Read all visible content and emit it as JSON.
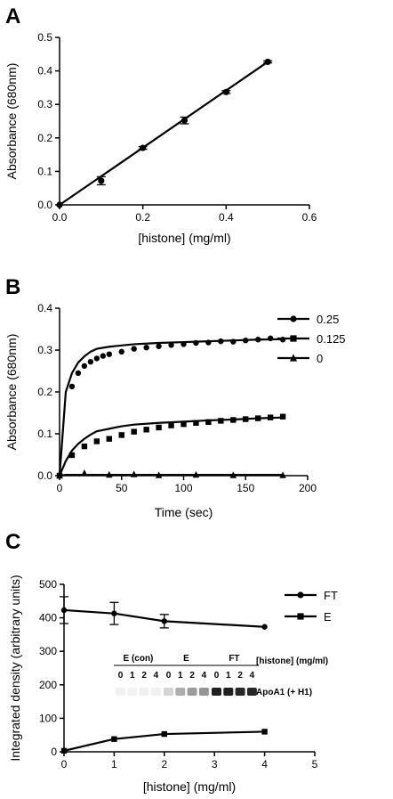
{
  "chart_data": [
    {
      "panel": "A",
      "type": "scatter",
      "xlabel": "[histone] (mg/ml)",
      "ylabel": "Absorbance (680nm)",
      "xlim": [
        0.0,
        0.6
      ],
      "ylim": [
        0.0,
        0.5
      ],
      "xticks": [
        "0.0",
        "0.2",
        "0.4",
        "0.6"
      ],
      "yticks": [
        "0.0",
        "0.1",
        "0.2",
        "0.3",
        "0.4",
        "0.5"
      ],
      "fit_line": {
        "x": [
          0.0,
          0.5
        ],
        "y": [
          0.0,
          0.427
        ]
      },
      "series": [
        {
          "marker": "circle",
          "x": [
            0.0,
            0.1,
            0.2,
            0.3,
            0.4,
            0.5
          ],
          "y": [
            0.0,
            0.072,
            0.17,
            0.252,
            0.337,
            0.427
          ],
          "err": [
            0,
            0.012,
            0.004,
            0.01,
            0.004,
            0.003
          ]
        }
      ]
    },
    {
      "panel": "B",
      "type": "line",
      "xlabel": "Time (sec)",
      "ylabel": "Absorbance (680nm)",
      "xlim": [
        0,
        200
      ],
      "ylim": [
        0.0,
        0.4
      ],
      "xticks": [
        "0",
        "50",
        "100",
        "150",
        "200"
      ],
      "yticks": [
        "0.0",
        "0.1",
        "0.2",
        "0.3",
        "0.4"
      ],
      "legend_position": "right",
      "series": [
        {
          "name": "0.25",
          "marker": "circle",
          "x": [
            10,
            15,
            20,
            25,
            30,
            35,
            40,
            50,
            60,
            70,
            80,
            90,
            100,
            110,
            120,
            130,
            140,
            150,
            160,
            170,
            180
          ],
          "y": [
            0.213,
            0.245,
            0.262,
            0.272,
            0.28,
            0.286,
            0.29,
            0.296,
            0.303,
            0.306,
            0.309,
            0.312,
            0.314,
            0.317,
            0.318,
            0.321,
            0.32,
            0.323,
            0.325,
            0.328,
            0.325
          ],
          "fit_y": [
            0.0,
            0.2,
            0.245,
            0.27,
            0.285,
            0.296,
            0.303,
            0.308,
            0.311,
            0.314,
            0.317,
            0.319,
            0.321,
            0.323,
            0.325,
            0.326
          ]
        },
        {
          "name": "0.125",
          "marker": "square",
          "x": [
            0,
            10,
            20,
            30,
            40,
            50,
            60,
            70,
            80,
            90,
            100,
            110,
            120,
            130,
            140,
            150,
            160,
            170,
            180
          ],
          "y": [
            0.0,
            0.049,
            0.07,
            0.082,
            0.088,
            0.097,
            0.105,
            0.11,
            0.115,
            0.12,
            0.123,
            0.126,
            0.128,
            0.131,
            0.133,
            0.135,
            0.137,
            0.139,
            0.141
          ],
          "fit_y": [
            0.0,
            0.035,
            0.06,
            0.076,
            0.088,
            0.098,
            0.106,
            0.112,
            0.118,
            0.122,
            0.126,
            0.129,
            0.132,
            0.134,
            0.137,
            0.139
          ]
        },
        {
          "name": "0",
          "marker": "triangle",
          "x": [
            0,
            20,
            40,
            60,
            80,
            110,
            140,
            180
          ],
          "y": [
            0.0,
            0.006,
            0.002,
            0.003,
            0.001,
            0.002,
            0.001,
            0.001
          ],
          "fit_y": [
            0.0,
            0.002,
            0.002,
            0.002,
            0.002,
            0.002,
            0.002,
            0.002,
            0.002,
            0.002,
            0.002,
            0.002,
            0.002,
            0.002,
            0.002,
            0.002
          ]
        }
      ],
      "fit_x": [
        0,
        5,
        10,
        15,
        20,
        25,
        30,
        40,
        50,
        60,
        80,
        100,
        120,
        140,
        160,
        180
      ]
    },
    {
      "panel": "C",
      "type": "line",
      "xlabel": "[histone] (mg/ml)",
      "ylabel": "Integrated density (arbitrary units)",
      "xlim": [
        0,
        5
      ],
      "ylim": [
        0,
        500
      ],
      "xticks": [
        "0",
        "1",
        "2",
        "3",
        "4",
        "5"
      ],
      "yticks": [
        "0",
        "100",
        "200",
        "300",
        "400",
        "500"
      ],
      "legend_position": "right",
      "series": [
        {
          "name": "FT",
          "marker": "circle",
          "x": [
            0,
            1,
            2,
            4
          ],
          "y": [
            423,
            413,
            390,
            373
          ],
          "err": [
            40,
            33,
            20,
            0
          ]
        },
        {
          "name": "E",
          "marker": "square",
          "x": [
            0,
            1,
            2,
            4
          ],
          "y": [
            3,
            38,
            53,
            60
          ],
          "err": [
            0,
            0,
            0,
            0
          ]
        }
      ]
    }
  ],
  "panels": {
    "a": {
      "label": "A"
    },
    "b": {
      "label": "B"
    },
    "c": {
      "label": "C"
    }
  },
  "gel": {
    "groups": [
      "E (con)",
      "E",
      "FT"
    ],
    "lanes": [
      "0",
      "1",
      "2",
      "4"
    ],
    "header": "[histone] (mg/ml)",
    "band_label": "ApoA1 (+ H1)",
    "band_intensity": {
      "E (con)": [
        0.06,
        0.06,
        0.07,
        0.06
      ],
      "E": [
        0.18,
        0.35,
        0.42,
        0.45
      ],
      "FT": [
        0.95,
        0.95,
        0.92,
        0.92
      ]
    }
  }
}
